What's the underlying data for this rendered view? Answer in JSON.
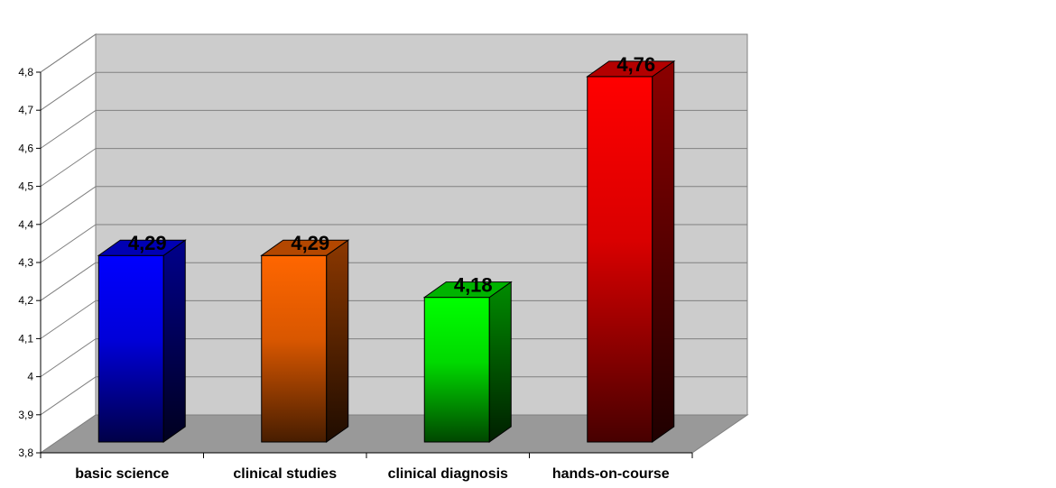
{
  "chart_data": {
    "type": "bar",
    "title": "",
    "xlabel": "",
    "ylabel": "",
    "categories": [
      "basic science",
      "clinical studies",
      "clinical diagnosis",
      "hands-on-course"
    ],
    "values": [
      4.29,
      4.29,
      4.18,
      4.76
    ],
    "value_labels": [
      "4,29",
      "4,29",
      "4,18",
      "4,76"
    ],
    "ylim": [
      3.8,
      4.8
    ],
    "yticks": [
      3.8,
      3.9,
      4.0,
      4.1,
      4.2,
      4.3,
      4.4,
      4.5,
      4.6,
      4.7,
      4.8
    ],
    "ytick_labels": [
      "3,8",
      "3,9",
      "4",
      "4,1",
      "4,2",
      "4,3",
      "4,4",
      "4,5",
      "4,6",
      "4,7",
      "4,8"
    ],
    "grid": true,
    "style": "3d-bar",
    "bar_colors": [
      "#0000ff",
      "#ff6600",
      "#00ff00",
      "#ff0000"
    ],
    "wall_color": "#cccccc",
    "floor_color": "#999999"
  }
}
